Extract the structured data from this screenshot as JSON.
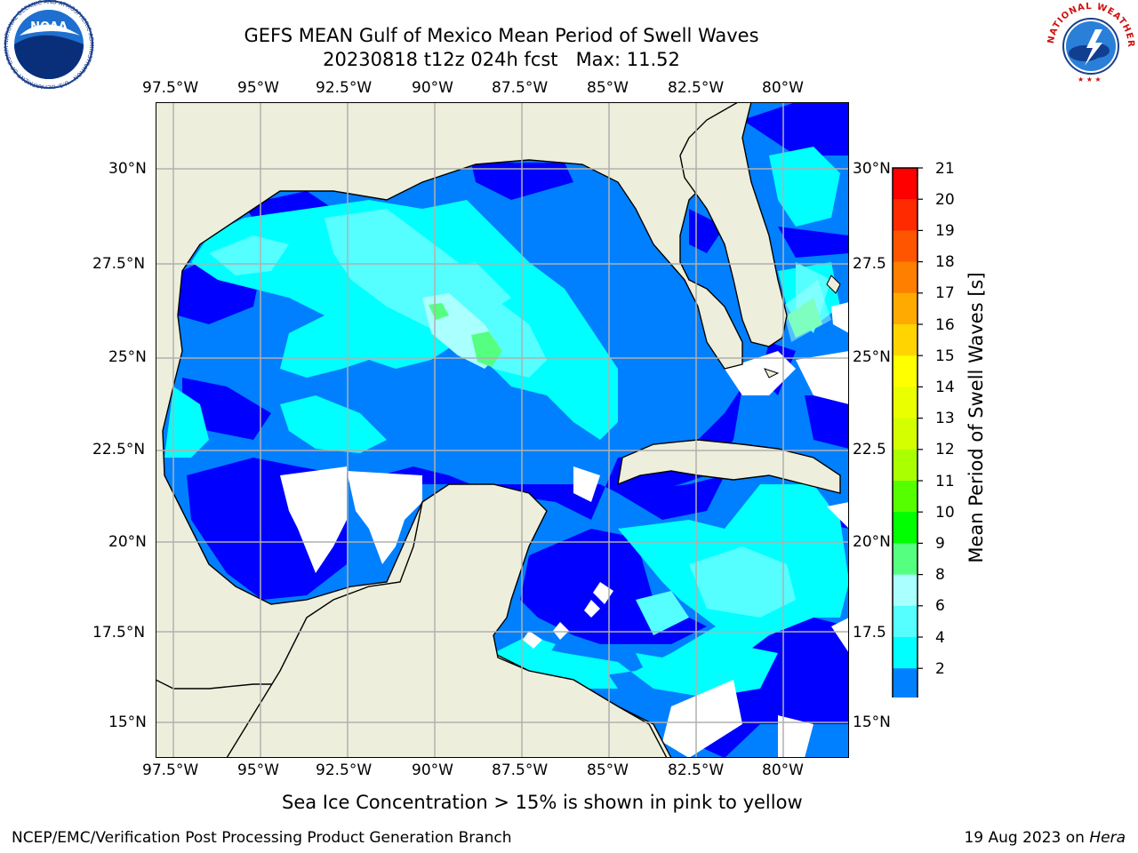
{
  "header": {
    "title_line1": "GEFS MEAN Gulf of Mexico Mean Period of Swell Waves",
    "title_line2": "20230818 t12z 024h fcst   Max: 11.52"
  },
  "logos": {
    "left": "NOAA",
    "left_ring_text": "NATIONAL OCEANIC AND ATMOSPHERIC ADMINISTRATION · U.S. DEPARTMENT OF COMMERCE",
    "right_ring_text": "NATIONAL WEATHER SERVICE"
  },
  "map": {
    "lon_ticks": [
      "97.5°W",
      "95°W",
      "92.5°W",
      "90°W",
      "87.5°W",
      "85°W",
      "82.5°W",
      "80°W"
    ],
    "lat_ticks_left": [
      "30°N",
      "27.5°N",
      "25°N",
      "22.5°N",
      "20°N",
      "17.5°N",
      "15°N"
    ],
    "lat_ticks_right": [
      "30°N",
      "27.5",
      "25°N",
      "22.5",
      "20°N",
      "17.5",
      "15°N"
    ],
    "land_color": "#eeeedc",
    "missing_color": "#ffffff",
    "grid_color": "#b0b0b0"
  },
  "colorbar": {
    "label": "Mean Period of Swell Waves [s]",
    "ticks": [
      "21",
      "20",
      "19",
      "18",
      "17",
      "16",
      "15",
      "14",
      "13",
      "12",
      "11",
      "10",
      "9",
      "8",
      "6",
      "4",
      "2"
    ],
    "colors": [
      "#ff0000",
      "#ff2a00",
      "#ff5500",
      "#ff7f00",
      "#ffaa00",
      "#ffd400",
      "#ffff00",
      "#eaff00",
      "#d4ff00",
      "#aaff00",
      "#55ff00",
      "#00ff00",
      "#55ff7f",
      "#aaffff",
      "#55ffff",
      "#00ffff",
      "#0080ff",
      "#0000ff"
    ]
  },
  "chart_data": {
    "type": "heatmap",
    "title": "GEFS MEAN Gulf of Mexico Mean Period of Swell Waves",
    "subtitle": "20230818 t12z 024h fcst   Max: 11.52",
    "xlabel": "",
    "ylabel": "",
    "lon_range": [
      -98.3,
      -78.3
    ],
    "lat_range": [
      14.0,
      31.8
    ],
    "color_scale": {
      "label": "Mean Period of Swell Waves [s]",
      "range": [
        2,
        21
      ]
    },
    "max_value": 11.52,
    "grid": true
  },
  "footer": {
    "note": "Sea Ice Concentration > 15% is shown in pink to yellow",
    "credit": "NCEP/EMC/Verification Post Processing Product Generation Branch",
    "date_prefix": "19 Aug 2023 on ",
    "machine": "Hera"
  }
}
